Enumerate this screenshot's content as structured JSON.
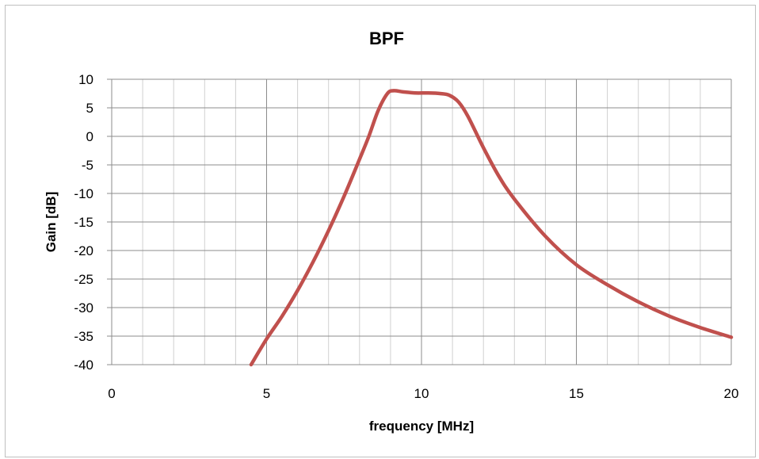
{
  "chart_data": {
    "type": "line",
    "title": "BPF",
    "xlabel": "frequency [MHz]",
    "ylabel": "Gain [dB]",
    "xlim": [
      0,
      20
    ],
    "ylim": [
      -40,
      10
    ],
    "x_ticks": [
      0,
      5,
      10,
      15,
      20
    ],
    "y_ticks": [
      10,
      5,
      0,
      -5,
      -10,
      -15,
      -20,
      -25,
      -30,
      -35,
      -40
    ],
    "x_minor_step": 1,
    "grid": true,
    "legend": "none",
    "series": [
      {
        "color": "#c0504d",
        "x": [
          4.5,
          5.0,
          5.5,
          6.0,
          6.5,
          7.0,
          7.5,
          8.0,
          8.3,
          8.6,
          8.9,
          9.1,
          9.4,
          9.8,
          10.2,
          10.6,
          10.9,
          11.2,
          11.5,
          12.0,
          12.5,
          13.0,
          14.0,
          15.0,
          16.0,
          17.0,
          18.0,
          19.0,
          20.0
        ],
        "y": [
          -40,
          -35.5,
          -31.5,
          -27,
          -22,
          -16.5,
          -10.5,
          -4,
          0,
          4.5,
          7.5,
          8.0,
          7.8,
          7.6,
          7.6,
          7.5,
          7.2,
          6,
          3.5,
          -2,
          -7,
          -11,
          -17.5,
          -22.5,
          -26,
          -29,
          -31.5,
          -33.5,
          -35.2
        ]
      }
    ]
  }
}
